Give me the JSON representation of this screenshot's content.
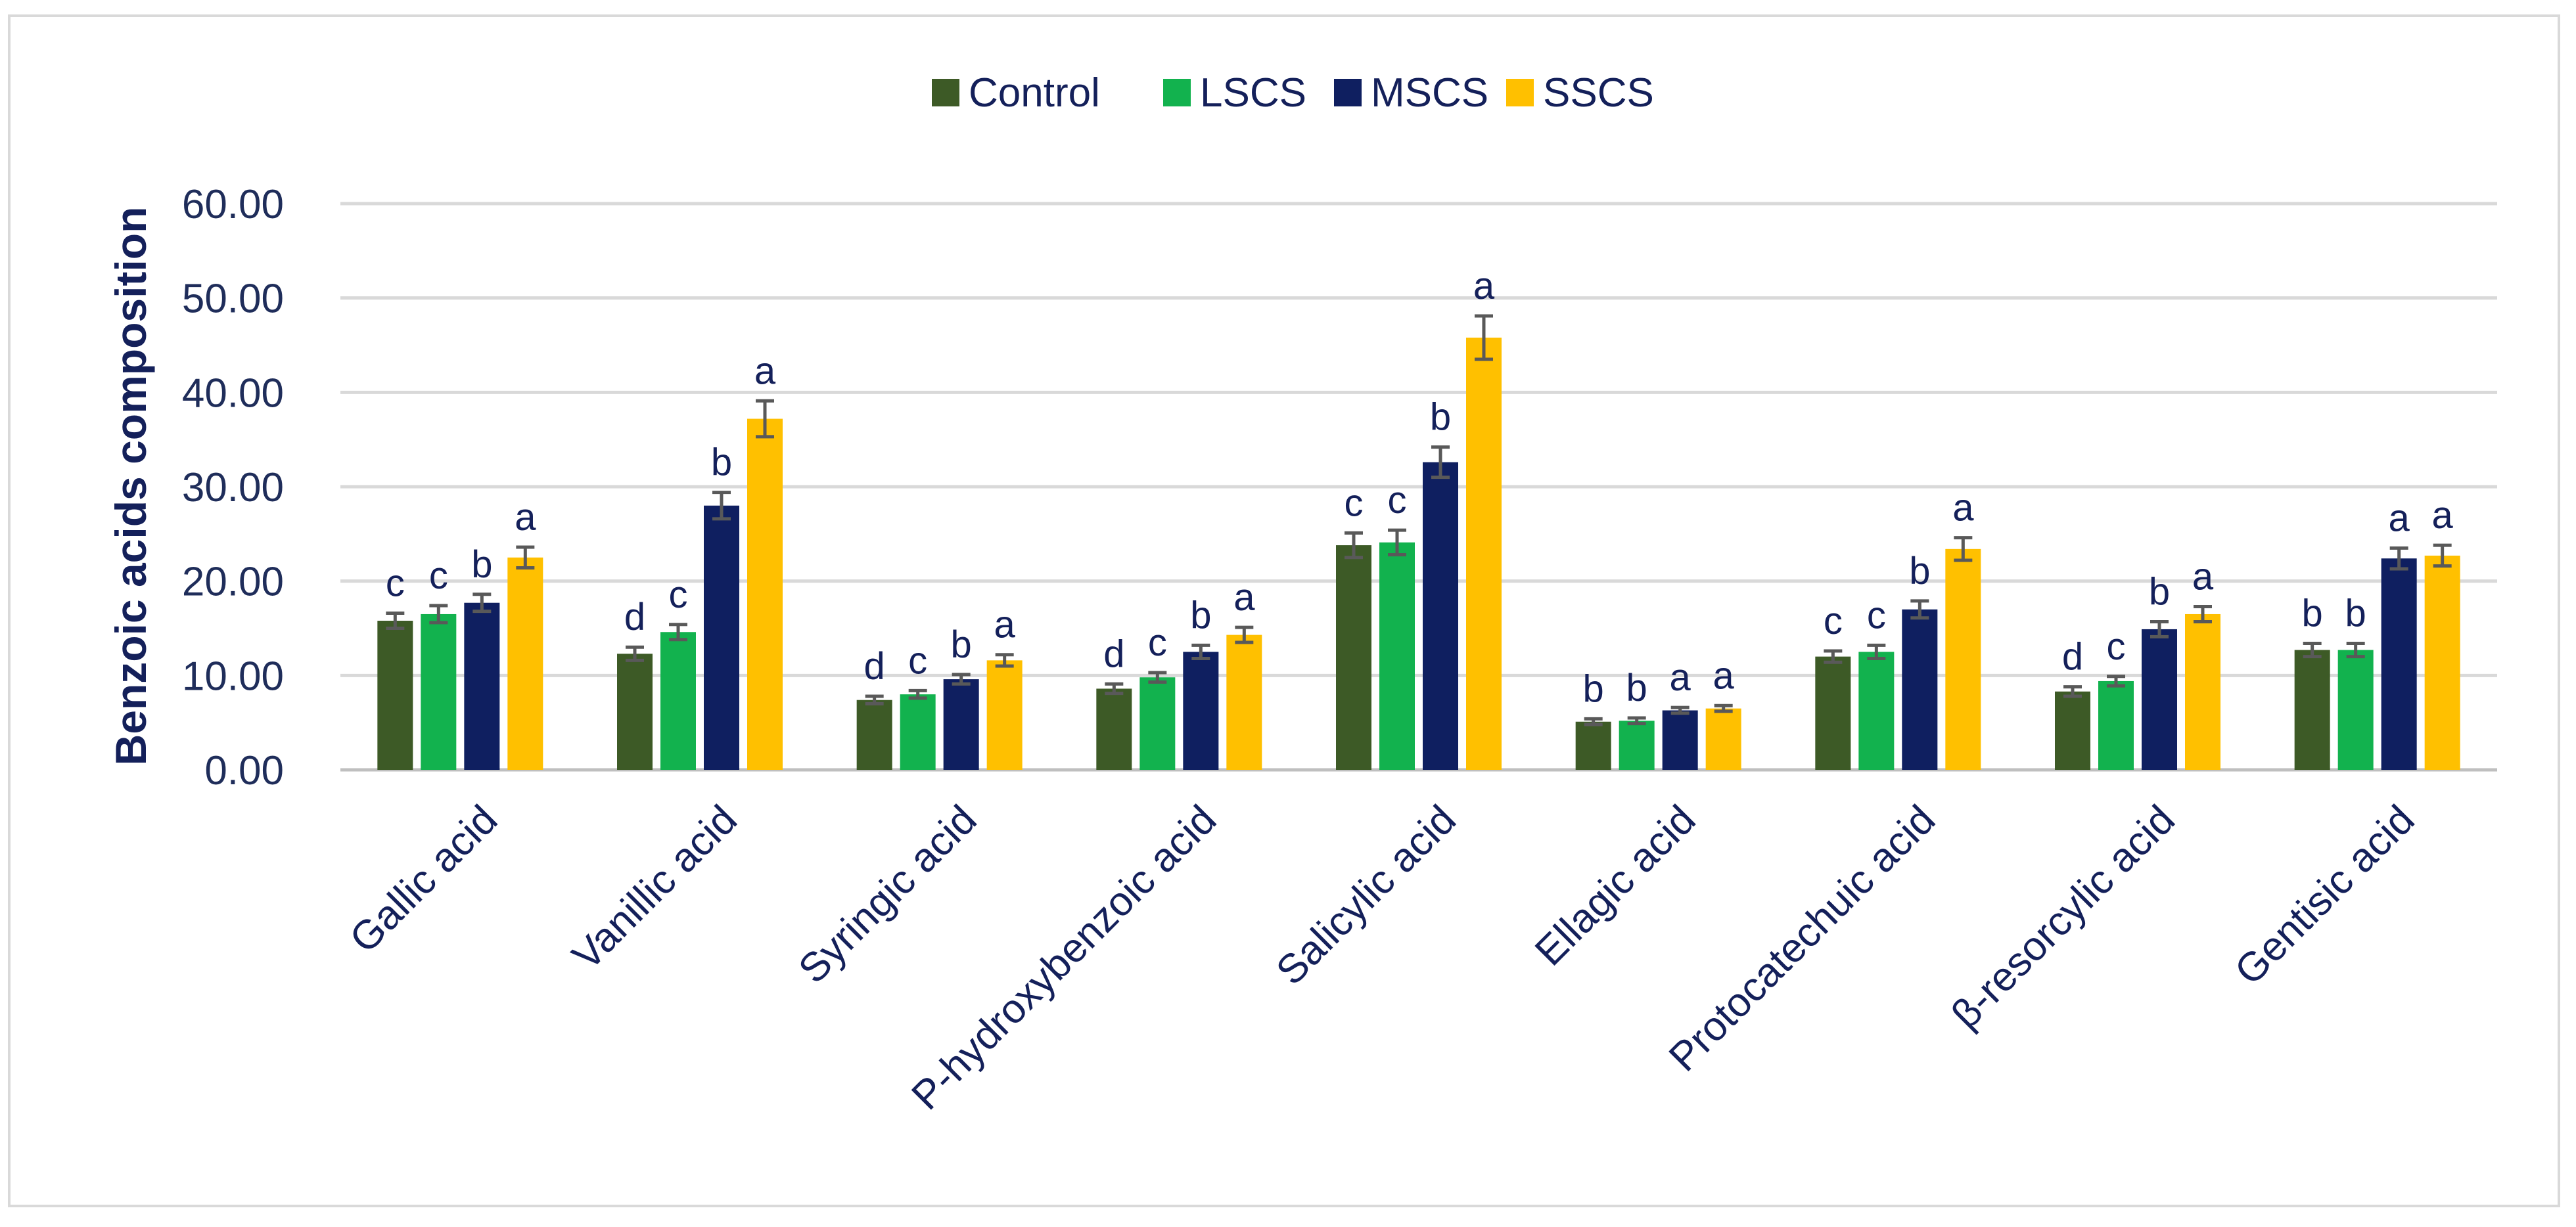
{
  "chart_data": {
    "type": "bar",
    "title": "",
    "xlabel": "",
    "ylabel": "Benzoic acids composition",
    "ylim": [
      0,
      60
    ],
    "yticks": [
      "0.00",
      "10.00",
      "20.00",
      "30.00",
      "40.00",
      "50.00",
      "60.00"
    ],
    "grid": true,
    "legend_position": "top-center",
    "categories": [
      "Gallic acid",
      "Vanillic acid",
      "Syringic acid",
      "P-hydroxybenzoic acid",
      "Salicylic acid",
      "Ellagic acid",
      "Protocatechuic acid",
      "β-resorcylic acid",
      "Gentisic acid"
    ],
    "series": [
      {
        "name": "Control",
        "color": "#3d5a26",
        "values": [
          15.8,
          12.3,
          7.4,
          8.6,
          23.8,
          5.1,
          12.0,
          8.3,
          12.7
        ],
        "errors": [
          0.8,
          0.7,
          0.4,
          0.5,
          1.3,
          0.3,
          0.6,
          0.5,
          0.7
        ],
        "letters": [
          "c",
          "d",
          "d",
          "d",
          "c",
          "b",
          "c",
          "d",
          "b"
        ]
      },
      {
        "name": "LSCS",
        "color": "#12b24e",
        "values": [
          16.5,
          14.6,
          8.0,
          9.8,
          24.1,
          5.2,
          12.5,
          9.4,
          12.7
        ],
        "errors": [
          0.9,
          0.8,
          0.4,
          0.5,
          1.3,
          0.3,
          0.7,
          0.5,
          0.7
        ],
        "letters": [
          "c",
          "c",
          "c",
          "c",
          "c",
          "b",
          "c",
          "c",
          "b"
        ]
      },
      {
        "name": "MSCS",
        "color": "#0f1f60",
        "values": [
          17.7,
          28.0,
          9.6,
          12.5,
          32.6,
          6.3,
          17.0,
          14.9,
          22.4
        ],
        "errors": [
          0.9,
          1.4,
          0.5,
          0.7,
          1.6,
          0.3,
          0.9,
          0.8,
          1.1
        ],
        "letters": [
          "b",
          "b",
          "b",
          "b",
          "b",
          "a",
          "b",
          "b",
          "a"
        ]
      },
      {
        "name": "SSCS",
        "color": "#ffc000",
        "values": [
          22.5,
          37.2,
          11.6,
          14.3,
          45.8,
          6.5,
          23.4,
          16.5,
          22.7
        ],
        "errors": [
          1.1,
          1.9,
          0.6,
          0.8,
          2.3,
          0.3,
          1.2,
          0.8,
          1.1
        ],
        "letters": [
          "a",
          "a",
          "a",
          "a",
          "a",
          "a",
          "a",
          "a",
          "a"
        ]
      }
    ]
  }
}
